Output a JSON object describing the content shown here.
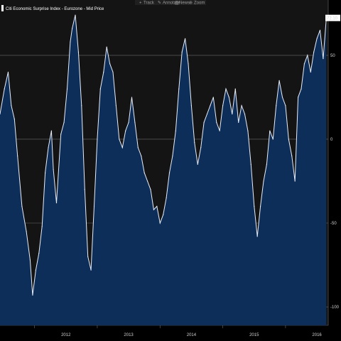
{
  "toolbar": {
    "items": [
      {
        "icon": "track-icon",
        "label": "Track"
      },
      {
        "icon": "annotate-icon",
        "label": "Annotate"
      },
      {
        "icon": "news-icon",
        "label": "News"
      },
      {
        "icon": "zoom-icon",
        "label": "Zoom"
      }
    ]
  },
  "colors": {
    "background": "#000000",
    "plot_background": "#141414",
    "area_fill": "#0e2e5a",
    "line": "#e8eef8",
    "grid": "#6b6b6b",
    "last_value_bg": "#ffffff",
    "last_value_text": "#000000"
  },
  "chart_data": {
    "type": "area",
    "legend": "Citi Economic Surprise Index - Eurozone - Mid Price",
    "legend_position": "top-left",
    "y_axis_side": "right",
    "ylim": [
      -111,
      83
    ],
    "y_ticks": [
      {
        "value": 50,
        "label": "50"
      },
      {
        "value": 0,
        "label": "0"
      },
      {
        "value": -50,
        "label": "-50"
      },
      {
        "value": -100,
        "label": "-100"
      }
    ],
    "x_ticks": [
      "2012",
      "2013",
      "2014",
      "2015",
      "2016"
    ],
    "grid": true,
    "last_value": 72.1,
    "last_value_label": "72.10",
    "x_unit": "year",
    "x": [
      2011.45,
      2011.52,
      2011.58,
      2011.63,
      2011.68,
      2011.73,
      2011.8,
      2011.87,
      2011.93,
      2011.97,
      2012.02,
      2012.07,
      2012.12,
      2012.17,
      2012.22,
      2012.27,
      2012.3,
      2012.35,
      2012.42,
      2012.47,
      2012.52,
      2012.57,
      2012.6,
      2012.65,
      2012.7,
      2012.75,
      2012.8,
      2012.85,
      2012.9,
      2012.95,
      2013.0,
      2013.05,
      2013.1,
      2013.15,
      2013.2,
      2013.25,
      2013.3,
      2013.35,
      2013.4,
      2013.45,
      2013.5,
      2013.55,
      2013.6,
      2013.65,
      2013.7,
      2013.75,
      2013.8,
      2013.85,
      2013.9,
      2013.95,
      2014.0,
      2014.05,
      2014.1,
      2014.15,
      2014.2,
      2014.25,
      2014.3,
      2014.35,
      2014.4,
      2014.45,
      2014.5,
      2014.55,
      2014.6,
      2014.65,
      2014.7,
      2014.75,
      2014.8,
      2014.85,
      2014.9,
      2014.95,
      2015.0,
      2015.05,
      2015.1,
      2015.15,
      2015.2,
      2015.25,
      2015.3,
      2015.35,
      2015.4,
      2015.45,
      2015.5,
      2015.55,
      2015.6,
      2015.65,
      2015.7,
      2015.75,
      2015.8,
      2015.85,
      2015.9,
      2015.95,
      2016.0,
      2016.05,
      2016.1,
      2016.15,
      2016.2,
      2016.25,
      2016.3,
      2016.35,
      2016.4,
      2016.45,
      2016.5,
      2016.55,
      2016.6,
      2016.65
    ],
    "y": [
      15,
      30,
      40,
      20,
      12,
      -10,
      -40,
      -55,
      -72,
      -93,
      -78,
      -68,
      -52,
      -20,
      -5,
      5,
      -18,
      -38,
      3,
      10,
      30,
      58,
      66,
      74,
      52,
      20,
      -30,
      -70,
      -78,
      -40,
      0,
      30,
      40,
      55,
      45,
      40,
      20,
      0,
      -5,
      5,
      10,
      25,
      10,
      -5,
      -10,
      -20,
      -25,
      -30,
      -42,
      -40,
      -50,
      -45,
      -35,
      -20,
      -10,
      5,
      30,
      52,
      60,
      45,
      20,
      -2,
      -15,
      -5,
      10,
      15,
      20,
      25,
      10,
      5,
      20,
      30,
      25,
      15,
      30,
      10,
      20,
      15,
      5,
      -15,
      -40,
      -58,
      -40,
      -25,
      -15,
      5,
      0,
      20,
      35,
      25,
      20,
      0,
      -10,
      -25,
      25,
      30,
      45,
      50,
      40,
      52,
      60,
      65,
      48,
      72
    ]
  }
}
